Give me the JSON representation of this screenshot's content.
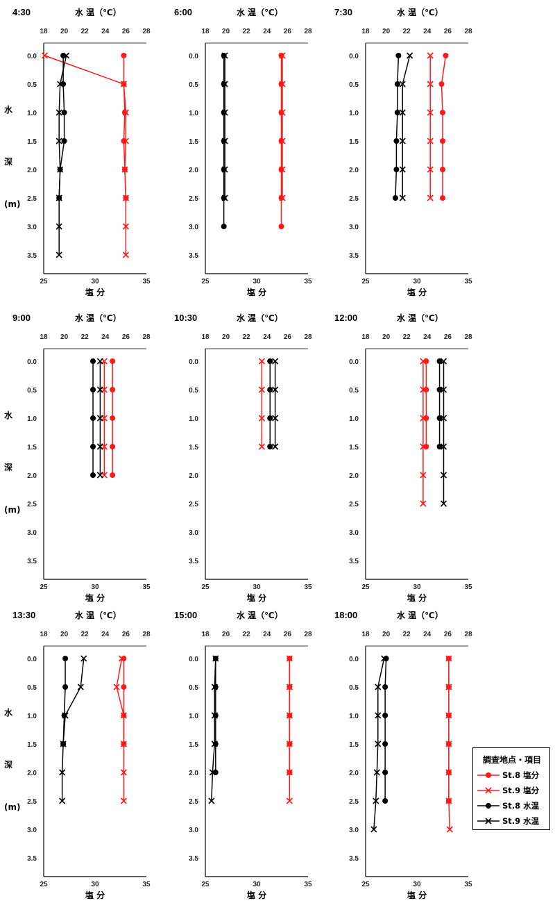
{
  "labels": {
    "top_axis": "水 温（℃）",
    "bottom_axis": "塩 分",
    "left_chars": [
      "水",
      "深",
      "(m)"
    ]
  },
  "legend": {
    "title": "調査地点・項目",
    "items": [
      {
        "label": "St.8 塩分",
        "color": "#ff1a1a",
        "marker": "circle"
      },
      {
        "label": "St.9 塩分",
        "color": "#ff1a1a",
        "marker": "cross"
      },
      {
        "label": "St.8 水温",
        "color": "#000000",
        "marker": "circle"
      },
      {
        "label": "St.9 水温",
        "color": "#000000",
        "marker": "cross"
      }
    ]
  },
  "chart_data": {
    "type": "line",
    "panels": [
      {
        "time": "4:30",
        "series": [
          {
            "name": "St.8 塩分",
            "depth": [
              0.0,
              0.5,
              1.0,
              1.5,
              2.0,
              2.5
            ],
            "values": [
              32.8,
              32.8,
              32.9,
              32.8,
              32.9,
              33.0
            ]
          },
          {
            "name": "St.9 塩分",
            "depth": [
              0.0,
              0.5,
              1.0,
              1.5,
              2.0,
              2.5,
              3.0,
              3.5
            ],
            "values": [
              25.1,
              32.8,
              33.0,
              33.0,
              32.9,
              33.0,
              33.0,
              33.0
            ]
          },
          {
            "name": "St.8 水温",
            "depth": [
              0.0,
              0.5,
              1.0,
              1.5,
              2.0,
              2.5
            ],
            "values": [
              19.9,
              19.9,
              20.0,
              20.0,
              19.6,
              19.5
            ]
          },
          {
            "name": "St.9 水温",
            "depth": [
              0.0,
              0.5,
              1.0,
              1.5,
              2.0,
              2.5,
              3.0,
              3.5
            ],
            "values": [
              20.2,
              19.6,
              19.5,
              19.5,
              19.6,
              19.5,
              19.5,
              19.5
            ]
          }
        ]
      },
      {
        "time": "6:00",
        "series": [
          {
            "name": "St.8 塩分",
            "depth": [
              0.0,
              0.5,
              1.0,
              1.5,
              2.0,
              2.5,
              3.0
            ],
            "values": [
              32.4,
              32.4,
              32.4,
              32.4,
              32.4,
              32.4,
              32.4
            ]
          },
          {
            "name": "St.9 塩分",
            "depth": [
              0.0,
              0.5,
              1.0,
              1.5,
              2.0,
              2.5
            ],
            "values": [
              32.5,
              32.5,
              32.5,
              32.5,
              32.5,
              32.5
            ]
          },
          {
            "name": "St.8 水温",
            "depth": [
              0.0,
              0.5,
              1.0,
              1.5,
              2.0,
              2.5,
              3.0
            ],
            "values": [
              19.8,
              19.8,
              19.8,
              19.8,
              19.8,
              19.8,
              19.8
            ]
          },
          {
            "name": "St.9 水温",
            "depth": [
              0.0,
              0.5,
              1.0,
              1.5,
              2.0,
              2.5
            ],
            "values": [
              19.9,
              19.9,
              19.9,
              19.9,
              19.9,
              19.9
            ]
          }
        ]
      },
      {
        "time": "7:30",
        "series": [
          {
            "name": "St.8 塩分",
            "depth": [
              0.0,
              0.5,
              1.0,
              1.5,
              2.0,
              2.5
            ],
            "values": [
              32.8,
              32.4,
              32.5,
              32.5,
              32.5,
              32.5
            ]
          },
          {
            "name": "St.9 塩分",
            "depth": [
              0.0,
              0.5,
              1.0,
              1.5,
              2.0,
              2.5
            ],
            "values": [
              31.3,
              31.3,
              31.3,
              31.3,
              31.3,
              31.3
            ]
          },
          {
            "name": "St.8 水温",
            "depth": [
              0.0,
              0.5,
              1.0,
              1.5,
              2.0,
              2.5
            ],
            "values": [
              21.2,
              21.1,
              21.1,
              21.0,
              21.0,
              20.9
            ]
          },
          {
            "name": "St.9 水温",
            "depth": [
              0.0,
              0.5,
              1.0,
              1.5,
              2.0,
              2.5
            ],
            "values": [
              22.3,
              21.6,
              21.6,
              21.6,
              21.6,
              21.6
            ]
          }
        ]
      },
      {
        "time": "9:00",
        "series": [
          {
            "name": "St.8 塩分",
            "depth": [
              0.0,
              0.5,
              1.0,
              1.5,
              2.0
            ],
            "values": [
              31.7,
              31.7,
              31.7,
              31.7,
              31.7
            ]
          },
          {
            "name": "St.9 塩分",
            "depth": [
              0.0,
              0.5,
              1.0,
              1.5,
              2.0
            ],
            "values": [
              30.9,
              30.9,
              30.9,
              30.9,
              30.9
            ]
          },
          {
            "name": "St.8 水温",
            "depth": [
              0.0,
              0.5,
              1.0,
              1.5,
              2.0
            ],
            "values": [
              22.8,
              22.8,
              22.8,
              22.8,
              22.8
            ]
          },
          {
            "name": "St.9 水温",
            "depth": [
              0.0,
              0.5,
              1.0,
              1.5,
              2.0
            ],
            "values": [
              23.5,
              23.5,
              23.5,
              23.5,
              23.5
            ]
          }
        ]
      },
      {
        "time": "10:30",
        "series": [
          {
            "name": "St.8 塩分",
            "depth": [
              0.0,
              0.5,
              1.0,
              1.5
            ],
            "values": [
              31.3,
              31.3,
              31.3,
              31.3
            ]
          },
          {
            "name": "St.9 塩分",
            "depth": [
              0.0,
              0.5,
              1.0,
              1.5
            ],
            "values": [
              30.5,
              30.5,
              30.5,
              30.5
            ]
          },
          {
            "name": "St.8 水温",
            "depth": [
              0.0,
              0.5,
              1.0,
              1.5
            ],
            "values": [
              24.3,
              24.3,
              24.3,
              24.3
            ]
          },
          {
            "name": "St.9 水温",
            "depth": [
              0.0,
              0.5,
              1.0,
              1.5
            ],
            "values": [
              24.8,
              24.8,
              24.8,
              24.8
            ]
          }
        ]
      },
      {
        "time": "12:00",
        "series": [
          {
            "name": "St.8 塩分",
            "depth": [
              0.0,
              0.5,
              1.0,
              1.5
            ],
            "values": [
              30.9,
              30.9,
              30.9,
              30.9
            ]
          },
          {
            "name": "St.9 塩分",
            "depth": [
              0.0,
              0.5,
              1.0,
              1.5,
              2.0,
              2.5
            ],
            "values": [
              30.6,
              30.6,
              30.6,
              30.6,
              30.6,
              30.6
            ]
          },
          {
            "name": "St.8 水温",
            "depth": [
              0.0,
              0.5,
              1.0,
              1.5
            ],
            "values": [
              25.2,
              25.2,
              25.2,
              25.2
            ]
          },
          {
            "name": "St.9 水温",
            "depth": [
              0.0,
              0.5,
              1.0,
              1.5,
              2.0,
              2.5
            ],
            "values": [
              25.6,
              25.6,
              25.6,
              25.6,
              25.6,
              25.6
            ]
          }
        ]
      },
      {
        "time": "13:30",
        "series": [
          {
            "name": "St.8 塩分",
            "depth": [
              0.0,
              0.5,
              1.0,
              1.5
            ],
            "values": [
              32.8,
              32.8,
              32.8,
              32.8
            ]
          },
          {
            "name": "St.9 塩分",
            "depth": [
              0.0,
              0.5,
              1.0,
              1.5,
              2.0,
              2.5
            ],
            "values": [
              32.6,
              32.1,
              32.8,
              32.8,
              32.8,
              32.8
            ]
          },
          {
            "name": "St.8 水温",
            "depth": [
              0.0,
              0.5,
              1.0,
              1.5
            ],
            "values": [
              20.1,
              20.1,
              20.0,
              19.9
            ]
          },
          {
            "name": "St.9 水温",
            "depth": [
              0.0,
              0.5,
              1.0,
              1.5,
              2.0,
              2.5
            ],
            "values": [
              21.9,
              21.6,
              20.1,
              19.9,
              19.8,
              19.8
            ]
          }
        ]
      },
      {
        "time": "15:00",
        "series": [
          {
            "name": "St.8 塩分",
            "depth": [
              0.0,
              0.5,
              1.0,
              1.5,
              2.0
            ],
            "values": [
              33.2,
              33.2,
              33.2,
              33.2,
              33.2
            ]
          },
          {
            "name": "St.9 塩分",
            "depth": [
              0.0,
              0.5,
              1.0,
              1.5,
              2.0,
              2.5
            ],
            "values": [
              33.2,
              33.2,
              33.2,
              33.2,
              33.2,
              33.2
            ]
          },
          {
            "name": "St.8 水温",
            "depth": [
              0.0,
              0.5,
              1.0,
              1.5,
              2.0
            ],
            "values": [
              19.0,
              19.0,
              19.0,
              19.0,
              19.0
            ]
          },
          {
            "name": "St.9 水温",
            "depth": [
              0.0,
              0.5,
              1.0,
              1.5,
              2.0,
              2.5
            ],
            "values": [
              19.0,
              18.9,
              18.9,
              18.9,
              18.7,
              18.6
            ]
          }
        ]
      },
      {
        "time": "18:00",
        "series": [
          {
            "name": "St.8 塩分",
            "depth": [
              0.0,
              0.5,
              1.0,
              1.5,
              2.0,
              2.5
            ],
            "values": [
              33.1,
              33.1,
              33.1,
              33.1,
              33.1,
              33.1
            ]
          },
          {
            "name": "St.9 塩分",
            "depth": [
              0.0,
              0.5,
              1.0,
              1.5,
              2.0,
              2.5,
              3.0
            ],
            "values": [
              33.1,
              33.1,
              33.1,
              33.1,
              33.1,
              33.1,
              33.2
            ]
          },
          {
            "name": "St.8 水温",
            "depth": [
              0.0,
              0.5,
              1.0,
              1.5,
              2.0,
              2.5
            ],
            "values": [
              20.0,
              19.9,
              19.9,
              19.9,
              19.9,
              19.9
            ]
          },
          {
            "name": "St.9 水温",
            "depth": [
              0.0,
              0.5,
              1.0,
              1.5,
              2.0,
              2.5,
              3.0
            ],
            "values": [
              19.8,
              19.2,
              19.2,
              19.2,
              19.1,
              19.0,
              18.8
            ]
          }
        ]
      }
    ],
    "top_axis": {
      "label": "水 温（℃）",
      "range": [
        18,
        28
      ],
      "ticks": [
        18,
        20,
        22,
        24,
        26,
        28
      ]
    },
    "bottom_axis": {
      "label": "塩 分",
      "range": [
        25,
        35
      ],
      "ticks": [
        25,
        30,
        35
      ]
    },
    "depth_axis": {
      "range": [
        0,
        3.5
      ],
      "reversed": true,
      "ticks": [
        0.0,
        0.5,
        1.0,
        1.5,
        2.0,
        2.5,
        3.0,
        3.5
      ]
    },
    "grid": false,
    "legend_position": "bottom-right"
  }
}
